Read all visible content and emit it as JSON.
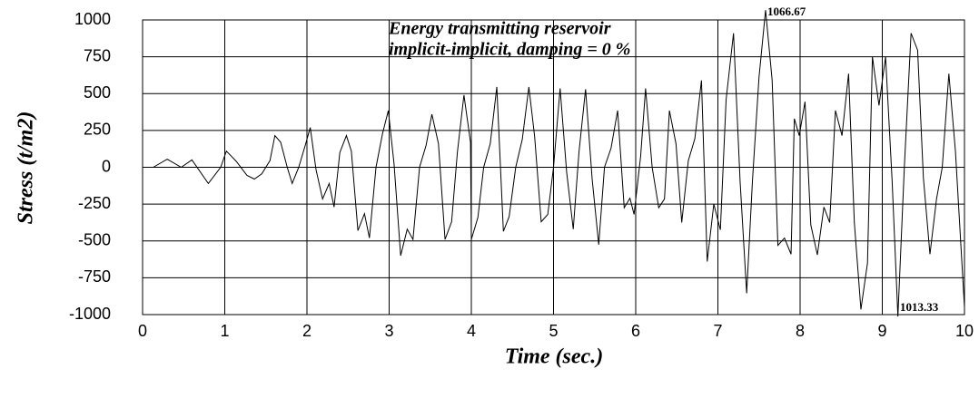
{
  "chart_data": {
    "type": "line",
    "title": [
      "Energy transmitting reservoir",
      "implicit-implicit, damping = 0 %"
    ],
    "x_label": "Time (sec.)",
    "y_label": "Stress (t/m2)",
    "annotations": [
      "1066.67",
      "1013.33"
    ],
    "xlim": [
      0,
      10
    ],
    "xticks": [
      0,
      1,
      2,
      3,
      4,
      5,
      6,
      7,
      8,
      9,
      10
    ],
    "ylim": [
      -1000,
      1000
    ],
    "yticks": [
      -1000,
      -750,
      -500,
      -250,
      0,
      250,
      500,
      750,
      1000
    ],
    "grid": true,
    "series": [
      {
        "name": "Stress",
        "color": "#000000",
        "x": [
          0.13,
          0.3,
          0.47,
          0.6,
          0.8,
          0.95,
          1.02,
          1.14,
          1.27,
          1.36,
          1.45,
          1.55,
          1.61,
          1.68,
          1.76,
          1.82,
          1.9,
          1.98,
          2.04,
          2.11,
          2.19,
          2.27,
          2.33,
          2.4,
          2.48,
          2.54,
          2.62,
          2.7,
          2.76,
          2.84,
          2.92,
          2.99,
          3.06,
          3.14,
          3.22,
          3.29,
          3.37,
          3.45,
          3.52,
          3.6,
          3.68,
          3.76,
          3.83,
          3.91,
          3.99,
          4.0,
          4.08,
          4.15,
          4.23,
          4.31,
          4.39,
          4.46,
          4.54,
          4.62,
          4.7,
          4.77,
          4.85,
          4.93,
          5.0,
          5.08,
          5.16,
          5.24,
          5.31,
          5.39,
          5.47,
          5.55,
          5.62,
          5.7,
          5.78,
          5.86,
          5.93,
          5.98,
          6.06,
          6.12,
          6.2,
          6.28,
          6.35,
          6.41,
          6.49,
          6.56,
          6.64,
          6.72,
          6.8,
          6.87,
          6.95,
          7.03,
          7.1,
          7.19,
          7.27,
          7.35,
          7.42,
          7.5,
          7.58,
          7.66,
          7.73,
          7.81,
          7.89,
          7.93,
          7.99,
          8.06,
          8.13,
          8.21,
          8.29,
          8.36,
          8.43,
          8.51,
          8.59,
          8.66,
          8.74,
          8.82,
          8.88,
          8.96,
          9.04,
          9.12,
          9.19,
          9.27,
          9.35,
          9.43,
          9.5,
          9.58,
          9.66,
          9.73,
          9.81,
          9.89,
          10
        ],
        "values": [
          0,
          55,
          0,
          50,
          -110,
          0,
          110,
          40,
          -55,
          -80,
          -45,
          45,
          215,
          170,
          0,
          -110,
          0,
          150,
          270,
          -15,
          -215,
          -110,
          -270,
          100,
          215,
          110,
          -430,
          -315,
          -480,
          0,
          230,
          385,
          20,
          -600,
          -420,
          -490,
          0,
          150,
          360,
          160,
          -490,
          -370,
          100,
          490,
          170,
          -490,
          -340,
          0,
          160,
          545,
          -435,
          -335,
          0,
          190,
          545,
          210,
          -370,
          -320,
          0,
          535,
          -35,
          -420,
          105,
          530,
          -80,
          -525,
          0,
          130,
          385,
          -275,
          -210,
          -320,
          75,
          535,
          0,
          -275,
          -215,
          385,
          160,
          -375,
          45,
          195,
          590,
          -640,
          -250,
          -425,
          460,
          910,
          -95,
          -855,
          -95,
          610,
          1066.67,
          590,
          -530,
          -480,
          -590,
          330,
          215,
          445,
          -390,
          -595,
          -270,
          -375,
          385,
          215,
          635,
          -375,
          -965,
          -650,
          750,
          420,
          750,
          -95,
          -1013.33,
          20,
          910,
          795,
          -70,
          -590,
          -215,
          0,
          635,
          110,
          -950
        ]
      }
    ]
  }
}
